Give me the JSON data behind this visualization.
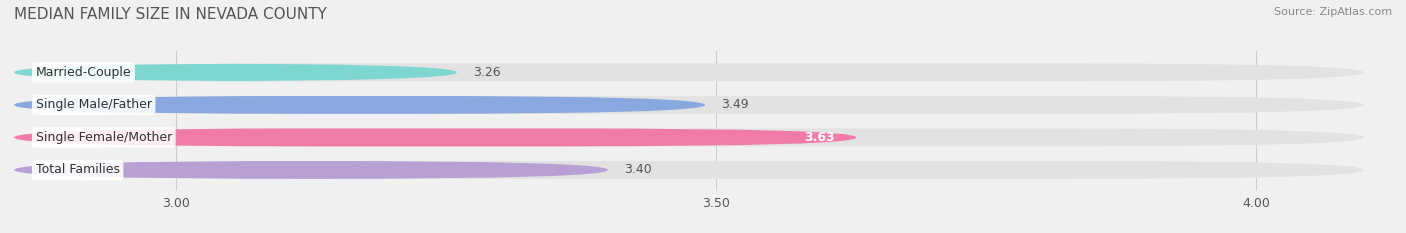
{
  "title": "MEDIAN FAMILY SIZE IN NEVADA COUNTY",
  "source": "Source: ZipAtlas.com",
  "categories": [
    "Married-Couple",
    "Single Male/Father",
    "Single Female/Mother",
    "Total Families"
  ],
  "values": [
    3.26,
    3.49,
    3.63,
    3.4
  ],
  "bar_colors": [
    "#7dd6d0",
    "#89a8e0",
    "#f07aa8",
    "#b89fd4"
  ],
  "label_colors": [
    "#555555",
    "#555555",
    "#ffffff",
    "#555555"
  ],
  "xlim": [
    2.85,
    4.1
  ],
  "xticks": [
    3.0,
    3.5,
    4.0
  ],
  "xtick_labels": [
    "3.00",
    "3.50",
    "4.00"
  ],
  "background_color": "#f0f0f0",
  "bar_bg_color": "#e2e2e2",
  "title_fontsize": 11,
  "source_fontsize": 8,
  "tick_fontsize": 9,
  "bar_label_fontsize": 9,
  "category_fontsize": 9,
  "bar_height": 0.55
}
